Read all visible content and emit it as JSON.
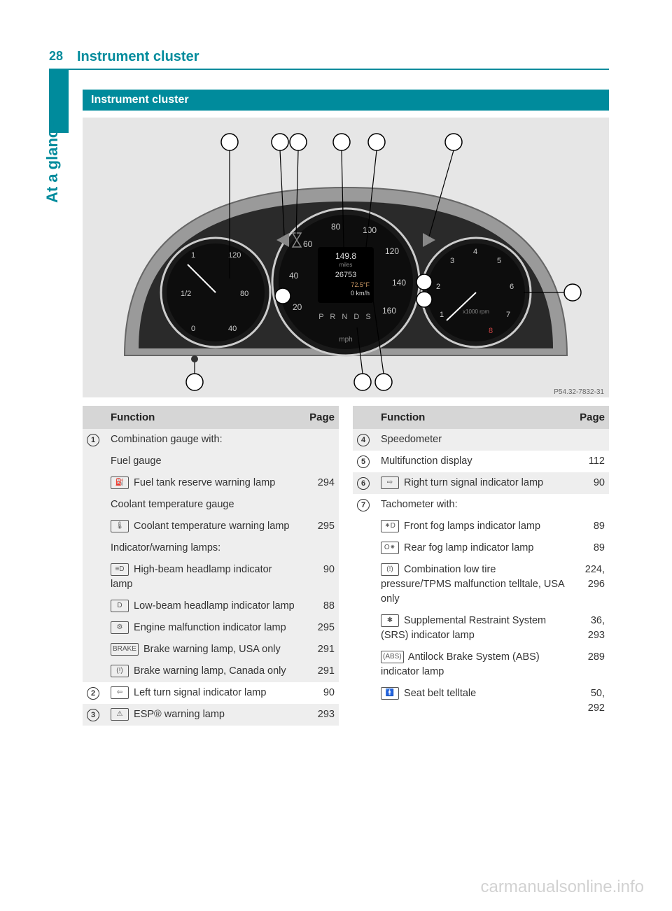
{
  "page": {
    "number": "28",
    "title": "Instrument cluster",
    "side_label": "At a glance",
    "section_header": "Instrument cluster",
    "watermark": "carmanualsonline.info"
  },
  "colors": {
    "teal": "#008b9c",
    "header_grey": "#d6d6d6",
    "alt_grey": "#eeeeee",
    "diagram_bg": "#e6e6e6"
  },
  "diagram": {
    "callouts_top": [
      "1",
      "2",
      "3",
      "4",
      "5",
      "6"
    ],
    "callouts_right": [
      "7"
    ],
    "callouts_mid": [
      "8",
      "9",
      "12"
    ],
    "callouts_bottom": [
      "13",
      "11",
      "10"
    ],
    "speedo_ticks": [
      "20",
      "40",
      "60",
      "80",
      "100",
      "120",
      "140",
      "160"
    ],
    "odo1": "149.8",
    "odo1_unit": "miles",
    "odo2": "26753",
    "temp": "72.5°F",
    "speed": "0 km/h",
    "gear": "P R N D S",
    "speedo_unit": "mph",
    "tach_ticks": [
      "1",
      "2",
      "3",
      "4",
      "5",
      "6",
      "7",
      "8"
    ],
    "tach_unit": "x1000 rpm",
    "fuel_ticks": [
      "0",
      "1/2",
      "1"
    ],
    "fuel_temp_ticks": [
      "40",
      "80",
      "120"
    ],
    "image_code": "P54.32-7832-31"
  },
  "table_headers": {
    "func": "Function",
    "page": "Page"
  },
  "left_rows": [
    {
      "alt": true,
      "marker": "1",
      "lines": [
        {
          "text": "Combination gauge with:",
          "page": ""
        },
        {
          "text": "Fuel gauge",
          "page": ""
        },
        {
          "icon": "⛽",
          "text": "Fuel tank reserve warning lamp",
          "page": "294"
        },
        {
          "text": "Coolant temperature gauge",
          "page": ""
        },
        {
          "icon": "🌡",
          "text": "Coolant temperature warning lamp",
          "page": "295"
        },
        {
          "text": "Indicator/warning lamps:",
          "page": ""
        },
        {
          "icon": "≡D",
          "text": "High-beam headlamp indicator lamp",
          "page": "90"
        },
        {
          "icon": "D",
          "text": "Low-beam headlamp indicator lamp",
          "page": "88"
        },
        {
          "icon": "⚙",
          "text": "Engine malfunction indicator lamp",
          "page": "295"
        },
        {
          "icon": "BRAKE",
          "text": "Brake warning lamp, USA only",
          "page": "291"
        },
        {
          "icon": "(!)",
          "text": "Brake warning lamp, Canada only",
          "page": "291"
        }
      ]
    },
    {
      "alt": false,
      "marker": "2",
      "lines": [
        {
          "icon": "⇦",
          "text": "Left turn signal indicator lamp",
          "page": "90"
        }
      ]
    },
    {
      "alt": true,
      "marker": "3",
      "lines": [
        {
          "icon": "⚠",
          "text": "ESP® warning lamp",
          "page": "293"
        }
      ]
    }
  ],
  "right_rows": [
    {
      "alt": true,
      "marker": "4",
      "lines": [
        {
          "text": "Speedometer",
          "page": ""
        }
      ]
    },
    {
      "alt": false,
      "marker": "5",
      "lines": [
        {
          "text": "Multifunction display",
          "page": "112"
        }
      ]
    },
    {
      "alt": true,
      "marker": "6",
      "lines": [
        {
          "icon": "⇨",
          "text": "Right turn signal indicator lamp",
          "page": "90"
        }
      ]
    },
    {
      "alt": false,
      "marker": "7",
      "lines": [
        {
          "text": "Tachometer with:",
          "page": ""
        },
        {
          "icon": "⁕D",
          "text": "Front fog lamps indicator lamp",
          "page": "89"
        },
        {
          "icon": "O⁕",
          "text": "Rear fog lamp indicator lamp",
          "page": "89"
        },
        {
          "icon": "(!)",
          "text": "Combination low tire pressure/TPMS malfunction telltale, USA only",
          "page": "224, 296"
        },
        {
          "icon": "✱",
          "text": "Supplemental Restraint System (SRS) indicator lamp",
          "page": "36, 293"
        },
        {
          "icon": "(ABS)",
          "text": "Antilock Brake System (ABS) indicator lamp",
          "page": "289"
        },
        {
          "icon": "🚹",
          "text": "Seat belt telltale",
          "page": "50, 292"
        }
      ]
    }
  ]
}
